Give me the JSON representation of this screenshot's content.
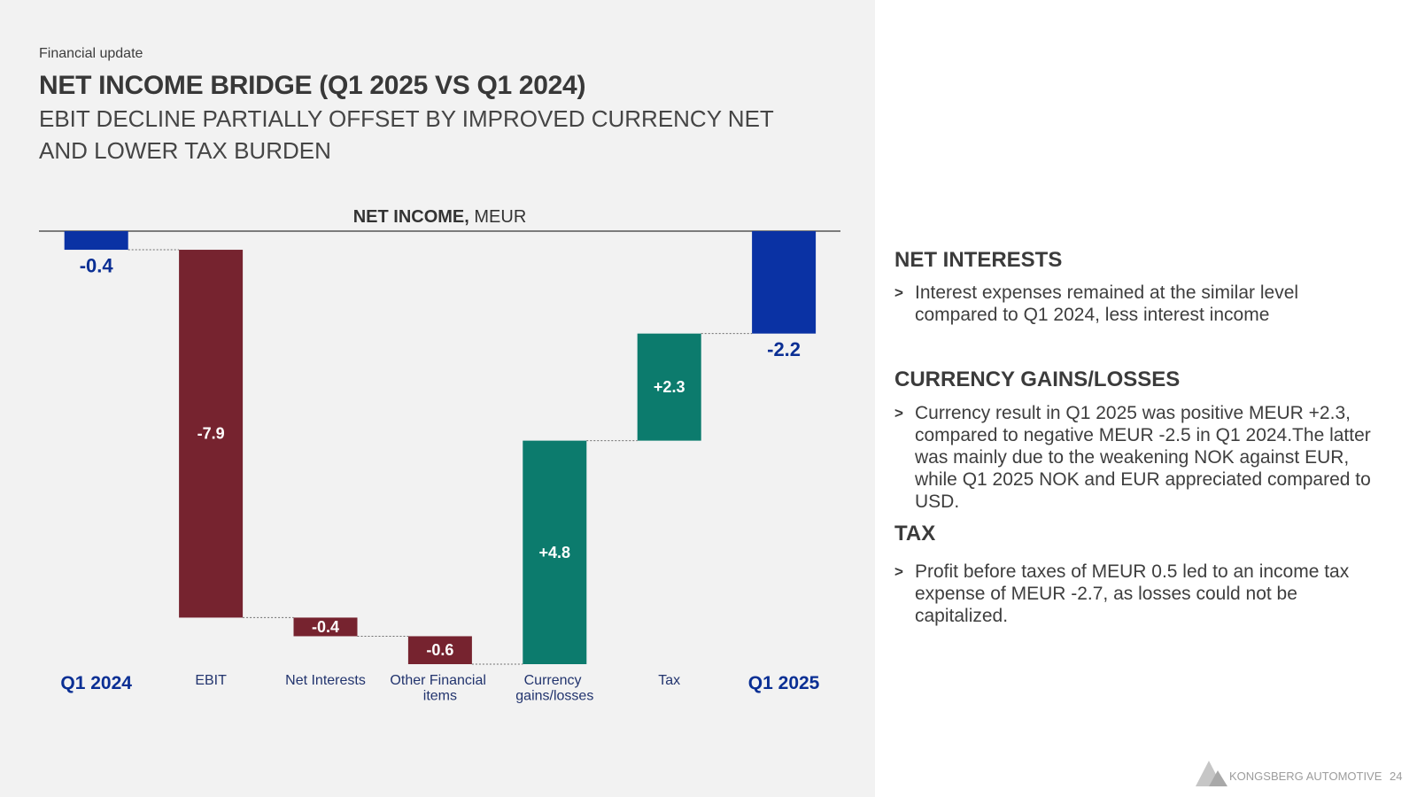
{
  "header": {
    "section_label": "Financial update",
    "title": "NET INCOME BRIDGE (Q1 2025 VS Q1 2024)",
    "subtitle_lines": [
      "EBIT DECLINE PARTIALLY OFFSET BY IMPROVED CURRENCY NET",
      "AND LOWER TAX BURDEN"
    ]
  },
  "chart_data": {
    "type": "bar",
    "style": "waterfall",
    "title": "NET INCOME,",
    "unit": "MEUR",
    "categories": [
      "Q1 2024",
      "EBIT",
      "Net Interests",
      "Other Financial items",
      "Currency gains/losses",
      "Tax",
      "Q1 2025"
    ],
    "values": [
      -0.4,
      -7.9,
      -0.4,
      -0.6,
      4.8,
      2.3,
      -2.2
    ],
    "bar_kinds": [
      "total",
      "decrease",
      "decrease",
      "decrease",
      "increase",
      "increase",
      "total"
    ],
    "data_labels": [
      "-0.4",
      "-7.9",
      "-0.4",
      "-0.6",
      "+4.8",
      "+2.3",
      "-2.2"
    ],
    "ylim": [
      -9.3,
      0
    ],
    "grid": false,
    "colors": {
      "total": "#0a32a4",
      "decrease": "#76232f",
      "increase": "#0c7b6d",
      "total_label": "#0a2f94",
      "category_label": "#22346e"
    }
  },
  "bullet_symbol": ">",
  "sections": [
    {
      "heading": "NET INTERESTS",
      "lines": [
        "Interest expenses remained at the similar level",
        "compared to Q1 2024, less interest income"
      ]
    },
    {
      "heading": "CURRENCY GAINS/LOSSES",
      "lines": [
        "Currency result in Q1 2025 was positive MEUR +2.3,",
        "compared to negative MEUR -2.5 in Q1 2024.The latter",
        "was mainly due to the weakening NOK against EUR,",
        "while Q1 2025 NOK and EUR appreciated compared to",
        "USD."
      ]
    },
    {
      "heading": "TAX",
      "lines": [
        "Profit before taxes of MEUR 0.5 led to an income tax",
        "expense of MEUR -2.7, as losses could not be",
        "capitalized."
      ]
    }
  ],
  "footer": {
    "brand": "KONGSBERG AUTOMOTIVE",
    "page_number": "24",
    "logo_icon": "kongsberg-logo-icon"
  }
}
